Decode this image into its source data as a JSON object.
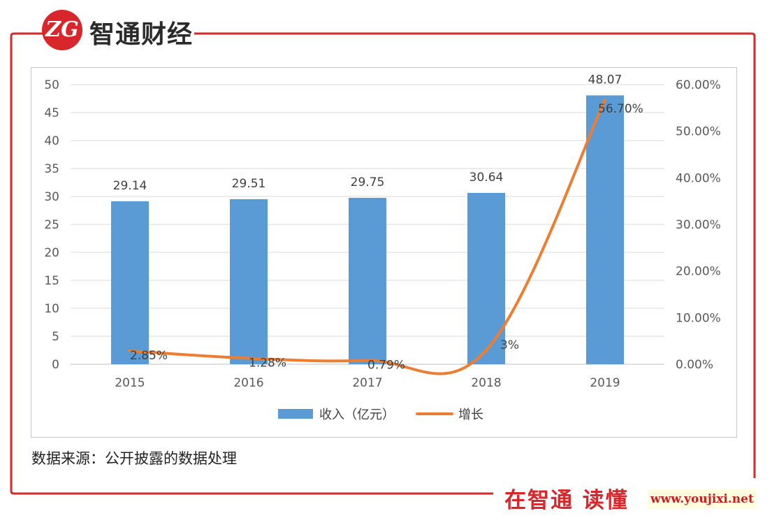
{
  "brand": {
    "logo_mark": "ZG",
    "name": "智通财经"
  },
  "source_note": "数据来源：公开披露的数据处理",
  "footer": {
    "brand": "在智通 读懂",
    "url": "www.youjixi.net"
  },
  "colors": {
    "bar": "#5b9bd5",
    "line": "#ed7d31",
    "frame": "#d42a2a",
    "grid": "#d9d9d9",
    "axis_text": "#595959"
  },
  "chart_data": {
    "type": "bar",
    "categories": [
      "2015",
      "2016",
      "2017",
      "2018",
      "2019"
    ],
    "series": [
      {
        "name": "收入（亿元）",
        "type": "bar",
        "axis": "left",
        "values": [
          29.14,
          29.51,
          29.75,
          30.64,
          48.07
        ],
        "labels": [
          "29.14",
          "29.51",
          "29.75",
          "30.64",
          "48.07"
        ]
      },
      {
        "name": "增长",
        "type": "line",
        "axis": "right",
        "values": [
          2.85,
          1.28,
          0.79,
          3.0,
          56.7
        ],
        "labels": [
          "2.85%",
          "1.28%",
          "0.79%",
          "3%",
          "56.70%"
        ]
      }
    ],
    "y_left": {
      "range": [
        0,
        50
      ],
      "ticks": [
        "0",
        "5",
        "10",
        "15",
        "20",
        "25",
        "30",
        "35",
        "40",
        "45",
        "50"
      ]
    },
    "y_right": {
      "range": [
        0,
        60
      ],
      "ticks": [
        "0.00%",
        "10.00%",
        "20.00%",
        "30.00%",
        "40.00%",
        "50.00%",
        "60.00%"
      ]
    },
    "grid": true,
    "legend": "bottom"
  }
}
